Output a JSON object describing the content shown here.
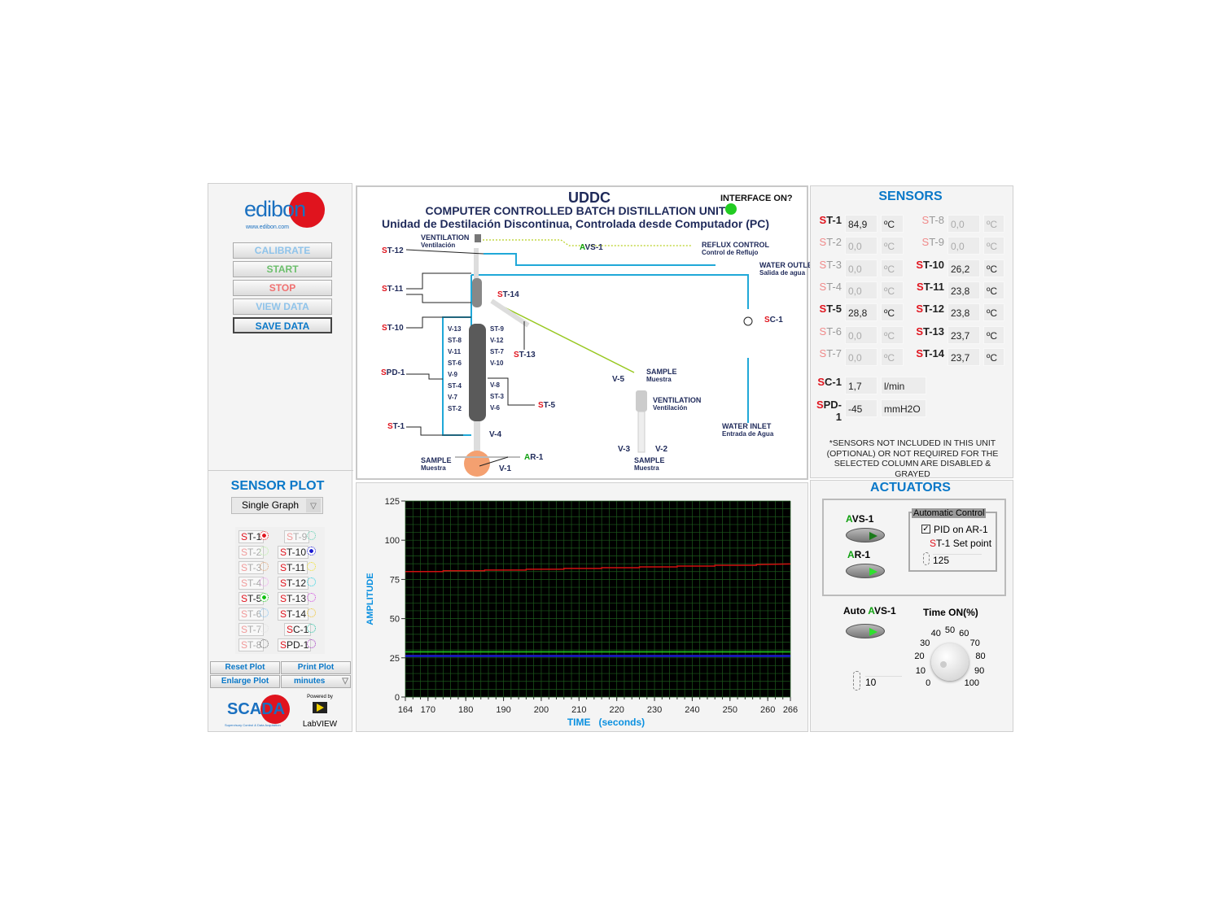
{
  "left": {
    "logo": "edibon",
    "logo_url": "www.edibon.com",
    "buttons": [
      {
        "label": "CALIBRATE",
        "color": "#8fc3ea"
      },
      {
        "label": "START",
        "color": "#6cbf6c"
      },
      {
        "label": "STOP",
        "color": "#f07070"
      },
      {
        "label": "VIEW DATA",
        "color": "#8fc3ea"
      },
      {
        "label": "SAVE DATA",
        "color": "#0a78c8"
      }
    ],
    "sensor_plot_title": "SENSOR PLOT",
    "graph_mode": "Single Graph",
    "plot_sensors": [
      {
        "p": "S",
        "label": "T-1",
        "enabled": true,
        "selected": true,
        "color": "#e0141e"
      },
      {
        "p": "S",
        "label": "T-9",
        "enabled": false,
        "selected": false,
        "color": "#5cd0b0"
      },
      {
        "p": "S",
        "label": "T-2",
        "enabled": false,
        "selected": false,
        "color": "#b8f0a0"
      },
      {
        "p": "S",
        "label": "T-10",
        "enabled": true,
        "selected": true,
        "color": "#1a1ad0"
      },
      {
        "p": "S",
        "label": "T-3",
        "enabled": false,
        "selected": false,
        "color": "#e0a070"
      },
      {
        "p": "S",
        "label": "T-11",
        "enabled": true,
        "selected": false,
        "color": "#f0e020"
      },
      {
        "p": "S",
        "label": "T-4",
        "enabled": false,
        "selected": false,
        "color": "#f0a0f0"
      },
      {
        "p": "S",
        "label": "T-12",
        "enabled": true,
        "selected": false,
        "color": "#20d0e0"
      },
      {
        "p": "S",
        "label": "T-5",
        "enabled": true,
        "selected": true,
        "color": "#10c010"
      },
      {
        "p": "S",
        "label": "T-13",
        "enabled": true,
        "selected": false,
        "color": "#d040e0"
      },
      {
        "p": "S",
        "label": "T-6",
        "enabled": false,
        "selected": false,
        "color": "#80c0f0"
      },
      {
        "p": "S",
        "label": "T-14",
        "enabled": true,
        "selected": false,
        "color": "#f0c020"
      },
      {
        "p": "S",
        "label": "T-7",
        "enabled": false,
        "selected": false,
        "color": "#e0e0e0"
      },
      {
        "p": "S",
        "label": "C-1",
        "enabled": true,
        "selected": false,
        "color": "#20c0a0"
      },
      {
        "p": "S",
        "label": "T-8",
        "enabled": false,
        "selected": false,
        "color": "#666666"
      },
      {
        "p": "S",
        "label": "PD-1",
        "enabled": true,
        "selected": false,
        "color": "#a030c0"
      }
    ],
    "reset_plot": "Reset Plot",
    "print_plot": "Print Plot",
    "enlarge_plot": "Enlarge Plot",
    "time_unit": "minutes",
    "scada": "SCADA",
    "scada_sub": "Supervisory Control & Data Acquisition",
    "powered_by": "Powered by",
    "labview": "LabVIEW"
  },
  "diagram": {
    "code": "UDDC",
    "title": "COMPUTER CONTROLLED BATCH DISTILLATION UNIT",
    "subtitle": "Unidad de Destilación Discontinua, Controlada desde Computador (PC)",
    "interface_label": "INTERFACE ON?",
    "interface_color": "#22cc22",
    "labels": {
      "ventilation": "VENTILATION",
      "ventilacion": "Ventilación",
      "avs1_a": "A",
      "avs1_b": "VS-1",
      "reflux": "REFLUX CONTROL",
      "reflux_es": "Control de Reflujo",
      "water_out": "WATER OUTLET",
      "water_out_es": "Salida de agua",
      "water_in": "WATER INLET",
      "water_in_es": "Entrada de Agua",
      "sample": "SAMPLE",
      "muestra": "Muestra",
      "ar1_a": "A",
      "ar1_b": "R-1",
      "st12": "T-12",
      "st11": "T-11",
      "st10": "T-10",
      "st14": "T-14",
      "st13": "T-13",
      "st5": "T-5",
      "st1": "T-1",
      "spd1": "PD-1",
      "sc1": "C-1",
      "s": "S",
      "v1": "V-1",
      "v2": "V-2",
      "v3": "V-3",
      "v4": "V-4",
      "v5": "V-5",
      "col_left": [
        "V-13",
        "ST-8",
        "V-11",
        "ST-6",
        "V-9",
        "ST-4",
        "V-7",
        "ST-2"
      ],
      "col_right": [
        "ST-9",
        "V-12",
        "ST-7",
        "V-10",
        "V-8",
        "ST-3",
        "V-6"
      ]
    }
  },
  "sensors": {
    "title": "SENSORS",
    "items": [
      {
        "p": "S",
        "n": "T-1",
        "value": "84,9",
        "unit": "ºC",
        "enabled": true
      },
      {
        "p": "S",
        "n": "T-8",
        "value": "0,0",
        "unit": "ºC",
        "enabled": false
      },
      {
        "p": "S",
        "n": "T-2",
        "value": "0,0",
        "unit": "ºC",
        "enabled": false
      },
      {
        "p": "S",
        "n": "T-9",
        "value": "0,0",
        "unit": "ºC",
        "enabled": false
      },
      {
        "p": "S",
        "n": "T-3",
        "value": "0,0",
        "unit": "ºC",
        "enabled": false
      },
      {
        "p": "S",
        "n": "T-10",
        "value": "26,2",
        "unit": "ºC",
        "enabled": true
      },
      {
        "p": "S",
        "n": "T-4",
        "value": "0,0",
        "unit": "ºC",
        "enabled": false
      },
      {
        "p": "S",
        "n": "T-11",
        "value": "23,8",
        "unit": "ºC",
        "enabled": true
      },
      {
        "p": "S",
        "n": "T-5",
        "value": "28,8",
        "unit": "ºC",
        "enabled": true
      },
      {
        "p": "S",
        "n": "T-12",
        "value": "23,8",
        "unit": "ºC",
        "enabled": true
      },
      {
        "p": "S",
        "n": "T-6",
        "value": "0,0",
        "unit": "ºC",
        "enabled": false
      },
      {
        "p": "S",
        "n": "T-13",
        "value": "23,7",
        "unit": "ºC",
        "enabled": true
      },
      {
        "p": "S",
        "n": "T-7",
        "value": "0,0",
        "unit": "ºC",
        "enabled": false
      },
      {
        "p": "S",
        "n": "T-14",
        "value": "23,7",
        "unit": "ºC",
        "enabled": true
      }
    ],
    "sc1": {
      "p": "S",
      "n": "C-1",
      "value": "1,7",
      "unit": "l/min"
    },
    "spd1": {
      "p": "S",
      "n": "PD-1",
      "value": "-45",
      "unit": "mmH2O"
    },
    "note": "*SENSORS NOT INCLUDED IN THIS UNIT (OPTIONAL) OR NOT REQUIRED FOR THE SELECTED COLUMN ARE DISABLED & GRAYED"
  },
  "actuators": {
    "title": "ACTUATORS",
    "avs1_a": "A",
    "avs1_b": "VS-1",
    "ar1_a": "A",
    "ar1_b": "R-1",
    "auto_control": "Automatic Control",
    "pid_label": "PID on AR-1",
    "pid_checked": true,
    "setpoint_s": "S",
    "setpoint_label": "T-1 Set point",
    "setpoint": "125",
    "auto_avs_label": "Auto ",
    "auto_avs_a": "A",
    "auto_avs_b": "VS-1",
    "auto_value": "10",
    "time_on_label": "Time ON(%)",
    "knob_ticks": [
      "0",
      "10",
      "20",
      "30",
      "40",
      "50",
      "60",
      "70",
      "80",
      "90",
      "100"
    ],
    "knob_value": 20
  },
  "chart_data": {
    "type": "line",
    "xlabel": "TIME   (seconds)",
    "ylabel": "AMPLITUDE",
    "xlim": [
      164,
      266
    ],
    "ylim": [
      0,
      125
    ],
    "xticks": [
      164,
      170,
      180,
      190,
      200,
      210,
      220,
      230,
      240,
      250,
      260,
      266
    ],
    "yticks": [
      0,
      25,
      50,
      75,
      100,
      125
    ],
    "grid": true,
    "background": "#000000",
    "series": [
      {
        "color": "#d01010",
        "x": [
          164,
          174,
          174,
          185,
          185,
          196,
          196,
          206,
          206,
          216,
          216,
          226,
          226,
          236,
          236,
          246,
          246,
          257,
          257,
          266
        ],
        "y": [
          80,
          80,
          80.5,
          80.5,
          81,
          81,
          81.5,
          81.5,
          82,
          82,
          82.5,
          82.5,
          83,
          83,
          83.5,
          83.5,
          84,
          84,
          84.5,
          84.9
        ]
      },
      {
        "color": "#20d020",
        "x": [
          164,
          266
        ],
        "y": [
          28.8,
          28.8
        ]
      },
      {
        "color": "#1a1ad0",
        "x": [
          164,
          266
        ],
        "y": [
          26.2,
          26.2
        ]
      }
    ]
  }
}
